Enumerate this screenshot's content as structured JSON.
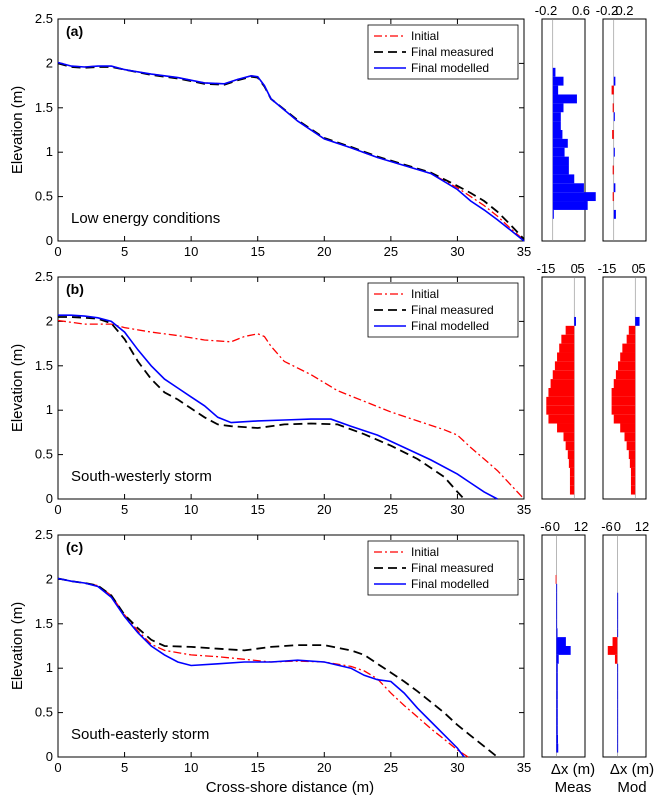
{
  "colors": {
    "initial": "#ff0000",
    "final_measured": "#000000",
    "final_modelled": "#0000ff",
    "accretion": "#0000ff",
    "erosion": "#ff0000"
  },
  "chart_data": [
    {
      "type": "line",
      "panel": "(a)",
      "annotation": "Low energy conditions",
      "xlabel": "",
      "ylabel": "Elevation (m)",
      "xlim": [
        0,
        35
      ],
      "ylim": [
        0,
        2.5
      ],
      "xticks": [
        0,
        5,
        10,
        15,
        20,
        25,
        30,
        35
      ],
      "yticks": [
        0,
        0.5,
        1,
        1.5,
        2,
        2.5
      ],
      "legend": "top-right",
      "series": [
        {
          "name": "Initial",
          "style": "dashdot",
          "x": [
            0,
            1,
            2,
            3,
            4,
            5,
            7,
            9,
            11,
            12.5,
            13.5,
            14.5,
            15,
            15.5,
            16,
            18,
            20,
            22,
            24,
            26,
            28,
            30,
            31,
            32,
            33,
            34,
            35
          ],
          "y": [
            2.01,
            1.97,
            1.96,
            1.97,
            1.97,
            1.93,
            1.88,
            1.84,
            1.78,
            1.77,
            1.82,
            1.86,
            1.85,
            1.75,
            1.6,
            1.35,
            1.15,
            1.05,
            0.94,
            0.85,
            0.76,
            0.6,
            0.5,
            0.4,
            0.28,
            0.14,
            0.01
          ]
        },
        {
          "name": "Final measured",
          "style": "dashed",
          "x": [
            0,
            1,
            2,
            3,
            4,
            5,
            7,
            9,
            11,
            12.5,
            13.5,
            14.5,
            15,
            15.5,
            16,
            18,
            20,
            22,
            24,
            26,
            28,
            30,
            31,
            32,
            33,
            34,
            35
          ],
          "y": [
            2.0,
            1.96,
            1.95,
            1.96,
            1.96,
            1.93,
            1.87,
            1.83,
            1.77,
            1.76,
            1.81,
            1.85,
            1.84,
            1.74,
            1.6,
            1.36,
            1.16,
            1.06,
            0.95,
            0.86,
            0.77,
            0.62,
            0.54,
            0.45,
            0.33,
            0.18,
            0.02
          ]
        },
        {
          "name": "Final modelled",
          "style": "solid",
          "x": [
            0,
            1,
            2,
            3,
            4,
            5,
            7,
            9,
            11,
            12.5,
            13.5,
            14.5,
            15,
            15.5,
            16,
            18,
            20,
            22,
            24,
            26,
            28,
            30,
            31,
            32,
            33,
            34,
            35
          ],
          "y": [
            2.01,
            1.97,
            1.96,
            1.97,
            1.97,
            1.93,
            1.88,
            1.84,
            1.78,
            1.77,
            1.82,
            1.86,
            1.85,
            1.75,
            1.6,
            1.35,
            1.15,
            1.05,
            0.94,
            0.85,
            0.76,
            0.58,
            0.45,
            0.35,
            0.24,
            0.12,
            0.0
          ]
        }
      ],
      "histograms": [
        {
          "xlim": [
            -0.2,
            0.6
          ],
          "xticks": [
            "-0.2",
            "0.6"
          ],
          "zero": 0,
          "bars": [
            [
              0.3,
              0.02
            ],
            [
              0.4,
              0.65
            ],
            [
              0.5,
              0.8
            ],
            [
              0.6,
              0.58
            ],
            [
              0.7,
              0.4
            ],
            [
              0.8,
              0.3
            ],
            [
              0.9,
              0.3
            ],
            [
              1.0,
              0.22
            ],
            [
              1.1,
              0.28
            ],
            [
              1.2,
              0.18
            ],
            [
              1.3,
              0.15
            ],
            [
              1.4,
              0.15
            ],
            [
              1.5,
              0.2
            ],
            [
              1.6,
              0.45
            ],
            [
              1.7,
              0.1
            ],
            [
              1.8,
              0.2
            ],
            [
              1.9,
              0.05
            ]
          ]
        },
        {
          "xlim": [
            -0.2,
            0.6
          ],
          "xticks": [
            "-0.2",
            "0.2"
          ],
          "zero": 0,
          "bars": [
            [
              0.3,
              0.04
            ],
            [
              0.5,
              -0.02
            ],
            [
              0.6,
              0.03
            ],
            [
              0.8,
              -0.02
            ],
            [
              1.0,
              0.02
            ],
            [
              1.2,
              -0.03
            ],
            [
              1.4,
              0.02
            ],
            [
              1.5,
              -0.02
            ],
            [
              1.7,
              -0.04
            ],
            [
              1.8,
              0.03
            ]
          ]
        }
      ]
    },
    {
      "type": "line",
      "panel": "(b)",
      "annotation": "South-westerly storm",
      "xlabel": "",
      "ylabel": "Elevation (m)",
      "xlim": [
        0,
        35
      ],
      "ylim": [
        0,
        2.5
      ],
      "xticks": [
        0,
        5,
        10,
        15,
        20,
        25,
        30,
        35
      ],
      "yticks": [
        0,
        0.5,
        1,
        1.5,
        2,
        2.5
      ],
      "legend": "top-right",
      "series": [
        {
          "name": "Initial",
          "style": "dashdot",
          "x": [
            0,
            2,
            4,
            5,
            7,
            9,
            11,
            13,
            14,
            15,
            15.5,
            16,
            17,
            19,
            21,
            23,
            25,
            27,
            29,
            30,
            31,
            32,
            33,
            34,
            35
          ],
          "y": [
            2.01,
            1.97,
            1.97,
            1.93,
            1.88,
            1.84,
            1.79,
            1.77,
            1.83,
            1.86,
            1.83,
            1.72,
            1.55,
            1.4,
            1.22,
            1.1,
            0.98,
            0.88,
            0.78,
            0.72,
            0.58,
            0.45,
            0.32,
            0.16,
            0.0
          ]
        },
        {
          "name": "Final measured",
          "style": "dashed",
          "x": [
            0,
            1,
            2,
            3,
            4,
            5,
            6,
            7,
            8,
            9,
            10,
            11,
            12,
            13,
            15,
            17,
            19,
            21,
            23,
            25,
            27,
            29,
            30,
            30.5
          ],
          "y": [
            2.05,
            2.05,
            2.04,
            2.03,
            1.98,
            1.8,
            1.55,
            1.35,
            1.2,
            1.12,
            1.02,
            0.92,
            0.84,
            0.82,
            0.8,
            0.84,
            0.85,
            0.84,
            0.73,
            0.6,
            0.45,
            0.25,
            0.08,
            0.0
          ]
        },
        {
          "name": "Final modelled",
          "style": "solid",
          "x": [
            0,
            1,
            2,
            3,
            4,
            5,
            6,
            7,
            8,
            9,
            10,
            11,
            12,
            13,
            15,
            17,
            19,
            20.5,
            22,
            24,
            26,
            28,
            30,
            31,
            32,
            33
          ],
          "y": [
            2.07,
            2.07,
            2.06,
            2.04,
            2.0,
            1.88,
            1.68,
            1.5,
            1.35,
            1.25,
            1.15,
            1.05,
            0.92,
            0.86,
            0.88,
            0.89,
            0.9,
            0.9,
            0.82,
            0.72,
            0.58,
            0.44,
            0.28,
            0.18,
            0.08,
            0.0
          ]
        }
      ],
      "histograms": [
        {
          "xlim": [
            -15,
            5
          ],
          "xticks": [
            "-15",
            "0",
            "5"
          ],
          "zero": 0,
          "bars": [
            [
              0.1,
              -2
            ],
            [
              0.2,
              -2
            ],
            [
              0.3,
              -2
            ],
            [
              0.4,
              -2.5
            ],
            [
              0.5,
              -3
            ],
            [
              0.6,
              -4
            ],
            [
              0.7,
              -5
            ],
            [
              0.8,
              -8
            ],
            [
              0.9,
              -12
            ],
            [
              1.0,
              -13
            ],
            [
              1.1,
              -13
            ],
            [
              1.2,
              -12
            ],
            [
              1.3,
              -11
            ],
            [
              1.4,
              -10
            ],
            [
              1.5,
              -9
            ],
            [
              1.6,
              -8
            ],
            [
              1.7,
              -7
            ],
            [
              1.8,
              -6
            ],
            [
              1.9,
              -4
            ],
            [
              2.0,
              0.8
            ]
          ]
        },
        {
          "xlim": [
            -15,
            5
          ],
          "xticks": [
            "-15",
            "0",
            "5"
          ],
          "zero": 0,
          "bars": [
            [
              0.1,
              -2
            ],
            [
              0.2,
              -2
            ],
            [
              0.3,
              -2
            ],
            [
              0.4,
              -2.5
            ],
            [
              0.5,
              -3
            ],
            [
              0.6,
              -4
            ],
            [
              0.7,
              -5
            ],
            [
              0.8,
              -7
            ],
            [
              0.9,
              -10
            ],
            [
              1.0,
              -11
            ],
            [
              1.1,
              -11
            ],
            [
              1.2,
              -11
            ],
            [
              1.3,
              -10
            ],
            [
              1.4,
              -9
            ],
            [
              1.5,
              -8
            ],
            [
              1.6,
              -7
            ],
            [
              1.7,
              -6
            ],
            [
              1.8,
              -4
            ],
            [
              1.9,
              -3
            ],
            [
              2.0,
              2
            ]
          ]
        }
      ]
    },
    {
      "type": "line",
      "panel": "(c)",
      "annotation": "South-easterly storm",
      "xlabel": "Cross-shore distance (m)",
      "ylabel": "Elevation (m)",
      "xlim": [
        0,
        35
      ],
      "ylim": [
        0,
        2.5
      ],
      "xticks": [
        0,
        5,
        10,
        15,
        20,
        25,
        30,
        35
      ],
      "yticks": [
        0,
        0.5,
        1,
        1.5,
        2,
        2.5
      ],
      "legend": "top-right",
      "series": [
        {
          "name": "Initial",
          "style": "dashdot",
          "x": [
            0,
            1,
            2,
            3,
            4,
            5,
            6,
            7,
            8,
            10,
            12,
            14,
            16,
            18,
            20,
            22,
            23,
            24,
            25,
            26,
            27,
            28,
            29,
            30,
            30.8
          ],
          "y": [
            2.01,
            1.98,
            1.96,
            1.93,
            1.82,
            1.6,
            1.42,
            1.27,
            1.2,
            1.15,
            1.13,
            1.1,
            1.07,
            1.08,
            1.07,
            1.02,
            0.97,
            0.88,
            0.72,
            0.58,
            0.45,
            0.32,
            0.2,
            0.08,
            0.0
          ]
        },
        {
          "name": "Final measured",
          "style": "dashed",
          "x": [
            0,
            1,
            2,
            3,
            4,
            5,
            6,
            7,
            8,
            10,
            12,
            14,
            16,
            18,
            20,
            22,
            23,
            24,
            25,
            26,
            27,
            28,
            29,
            30,
            31,
            32,
            33
          ],
          "y": [
            2.01,
            1.98,
            1.96,
            1.93,
            1.82,
            1.6,
            1.45,
            1.32,
            1.25,
            1.24,
            1.22,
            1.2,
            1.24,
            1.26,
            1.26,
            1.2,
            1.15,
            1.05,
            0.95,
            0.85,
            0.74,
            0.62,
            0.5,
            0.36,
            0.24,
            0.12,
            0.0
          ]
        },
        {
          "name": "Final modelled",
          "style": "solid",
          "x": [
            0,
            1,
            2,
            3,
            4,
            5,
            6,
            7,
            8,
            9,
            10,
            12,
            14,
            16,
            18,
            20,
            22,
            23,
            24,
            25,
            26,
            27,
            28,
            29,
            30,
            30.5
          ],
          "y": [
            2.01,
            1.98,
            1.96,
            1.92,
            1.8,
            1.58,
            1.4,
            1.25,
            1.15,
            1.07,
            1.03,
            1.05,
            1.07,
            1.07,
            1.09,
            1.07,
            1.0,
            0.92,
            0.87,
            0.85,
            0.72,
            0.55,
            0.4,
            0.25,
            0.1,
            0.0
          ]
        }
      ],
      "histograms": [
        {
          "xlim": [
            -6,
            12
          ],
          "xticks": [
            "-6",
            "0",
            "12"
          ],
          "zero": 0,
          "bars": [
            [
              0.1,
              0.8
            ],
            [
              0.2,
              0.7
            ],
            [
              0.3,
              0.6
            ],
            [
              0.4,
              0.6
            ],
            [
              0.5,
              0.6
            ],
            [
              0.6,
              0.6
            ],
            [
              0.7,
              0.6
            ],
            [
              0.8,
              0.6
            ],
            [
              0.9,
              0.6
            ],
            [
              1.0,
              0.6
            ],
            [
              1.1,
              1.0
            ],
            [
              1.2,
              6.0
            ],
            [
              1.3,
              4.0
            ],
            [
              1.4,
              0.5
            ],
            [
              1.5,
              0.3
            ],
            [
              1.6,
              0.2
            ],
            [
              1.7,
              0.2
            ],
            [
              1.8,
              0.2
            ],
            [
              1.9,
              0.1
            ],
            [
              2.0,
              -0.3
            ]
          ]
        },
        {
          "xlim": [
            -6,
            12
          ],
          "xticks": [
            "-6",
            "0",
            "12"
          ],
          "zero": 0,
          "bars": [
            [
              0.1,
              0.2
            ],
            [
              0.2,
              0.2
            ],
            [
              0.3,
              0.2
            ],
            [
              0.4,
              0.2
            ],
            [
              0.5,
              0.2
            ],
            [
              0.6,
              0.2
            ],
            [
              0.7,
              0.2
            ],
            [
              0.8,
              0.2
            ],
            [
              0.9,
              0.2
            ],
            [
              1.0,
              0.3
            ],
            [
              1.1,
              -1.0
            ],
            [
              1.2,
              -4.0
            ],
            [
              1.3,
              -2.0
            ],
            [
              1.4,
              0.3
            ],
            [
              1.5,
              0.2
            ],
            [
              1.6,
              0.2
            ],
            [
              1.7,
              0.2
            ],
            [
              1.8,
              0.1
            ]
          ]
        }
      ]
    }
  ],
  "bottom_labels": {
    "hist1_line1": "Δx (m)",
    "hist1_line2": "Meas",
    "hist2_line1": "Δx (m)",
    "hist2_line2": "Mod"
  }
}
